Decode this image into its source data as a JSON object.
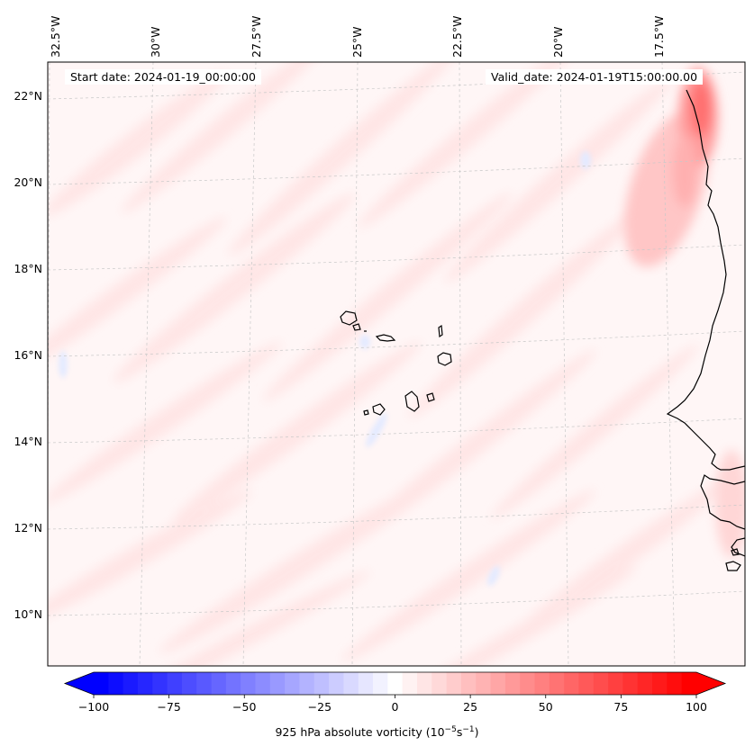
{
  "map": {
    "header": {
      "start_date": "Start date: 2024-01-19_00:00:00",
      "valid_date": "Valid_date: 2024-01-19T15:00:00.00"
    },
    "longitude_labels": [
      "32.5°W",
      "30°W",
      "27.5°W",
      "25°W",
      "22.5°W",
      "20°W",
      "17.5°W"
    ],
    "latitude_labels": [
      "22°N",
      "20°N",
      "18°N",
      "16°N",
      "14°N",
      "12°N",
      "10°N"
    ],
    "field": "925 hPa absolute vorticity",
    "colors": {
      "negative_max": "#0000ff",
      "neutral": "#ffffff",
      "positive_max": "#ff0000",
      "field_background": "#fff6f6",
      "coastline": "#000000",
      "gridline": "#c8c8c8"
    }
  },
  "colorbar": {
    "label_prefix": "925 hPa absolute vorticity (10",
    "label_exp1": "−5",
    "label_mid": "s",
    "label_exp2": "−1",
    "label_suffix": ")",
    "min": -100,
    "max": 100,
    "levels": 41,
    "ticks": [
      "−100",
      "−75",
      "−50",
      "−25",
      "0",
      "25",
      "50",
      "75",
      "100"
    ]
  }
}
